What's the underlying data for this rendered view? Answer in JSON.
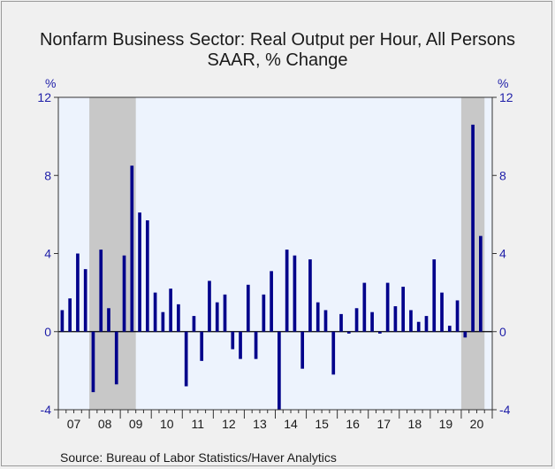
{
  "chart_data": {
    "type": "bar",
    "title": "Nonfarm Business Sector: Real Output per Hour, All Persons",
    "subtitle": "SAAR, % Change",
    "ylabel_left": "%",
    "ylabel_right": "%",
    "ylim": [
      -4,
      12
    ],
    "yticks": [
      -4,
      0,
      4,
      8,
      12
    ],
    "year_labels": [
      "07",
      "08",
      "09",
      "10",
      "11",
      "12",
      "13",
      "14",
      "15",
      "16",
      "17",
      "18",
      "19",
      "20"
    ],
    "start": "2007Q1",
    "recessions": [
      {
        "start": "2008Q1",
        "end": "2009Q2"
      },
      {
        "start": "2020Q1",
        "end": "2020Q3"
      }
    ],
    "series": [
      {
        "values": [
          1.1,
          1.7,
          4.0,
          3.2,
          -3.1,
          4.2,
          1.2,
          -2.7,
          3.9,
          8.5,
          6.1,
          5.7,
          2.0,
          1.0,
          2.2,
          1.4,
          -2.8,
          0.8,
          -1.5,
          2.6,
          1.5,
          1.9,
          -0.9,
          -1.4,
          2.4,
          -1.4,
          1.9,
          3.1,
          -4.0,
          4.2,
          3.9,
          -1.9,
          3.7,
          1.5,
          1.1,
          -2.2,
          0.9,
          -0.1,
          1.2,
          2.5,
          1.0,
          -0.1,
          2.5,
          1.3,
          2.3,
          1.1,
          0.5,
          0.8,
          3.7,
          2.0,
          0.3,
          1.6,
          -0.3,
          10.6,
          4.9
        ]
      }
    ],
    "colors": {
      "bar": "#00008b",
      "plot_bg": "#edf3fd",
      "recession": "#c8c8c8",
      "axis_text": "#1e1ea8"
    }
  },
  "source": "Source:  Bureau of Labor Statistics/Haver Analytics"
}
